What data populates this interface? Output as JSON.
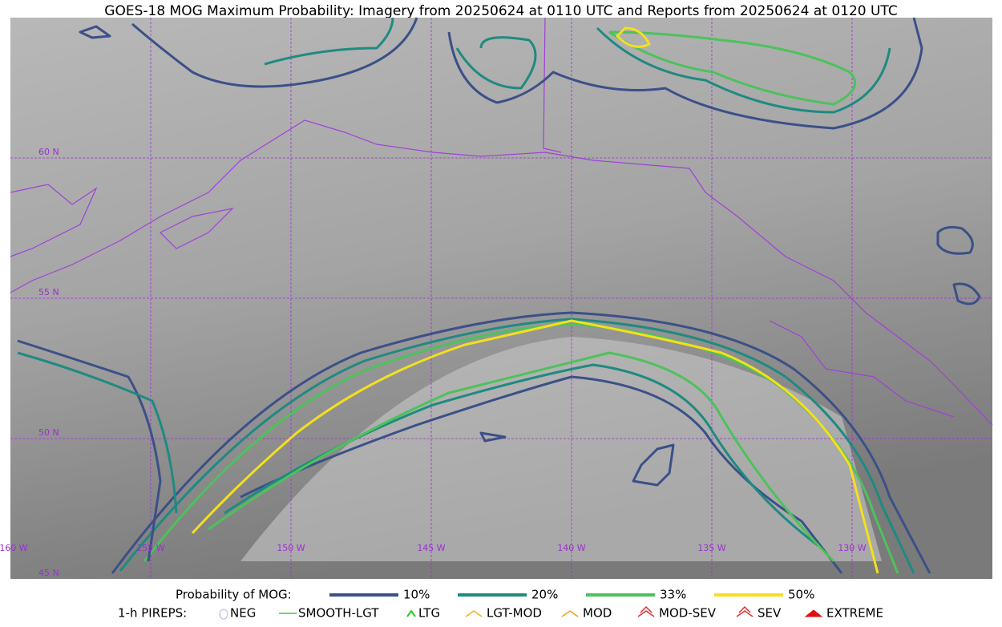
{
  "title": "GOES-18 MOG Maximum Probability: Imagery from 20250624 at 0110 UTC and Reports from 20250624 at 0120 UTC",
  "map": {
    "lat_labels": [
      "60 N",
      "55 N",
      "50 N",
      "45 N"
    ],
    "lon_labels": [
      "160 W",
      "155 W",
      "150 W",
      "145 W",
      "140 W",
      "135 W",
      "130 W"
    ]
  },
  "legend": {
    "probability": {
      "label": "Probability of MOG:",
      "items": [
        {
          "label": "10%",
          "color": "#3b5088"
        },
        {
          "label": "20%",
          "color": "#1f8a80"
        },
        {
          "label": "33%",
          "color": "#4cc25c"
        },
        {
          "label": "50%",
          "color": "#f4e01c"
        }
      ]
    },
    "pireps": {
      "label": "1-h PIREPS:",
      "items": [
        {
          "label": "NEG",
          "color": "#c8c8f0"
        },
        {
          "label": "SMOOTH-LGT",
          "color": "#44cc44"
        },
        {
          "label": "LTG",
          "color": "#22cc22"
        },
        {
          "label": "LGT-MOD",
          "color": "#f0b020"
        },
        {
          "label": "MOD",
          "color": "#f0a020"
        },
        {
          "label": "MOD-SEV",
          "color": "#e03030"
        },
        {
          "label": "SEV",
          "color": "#e03030"
        },
        {
          "label": "EXTREME",
          "color": "#e01010"
        }
      ]
    }
  }
}
